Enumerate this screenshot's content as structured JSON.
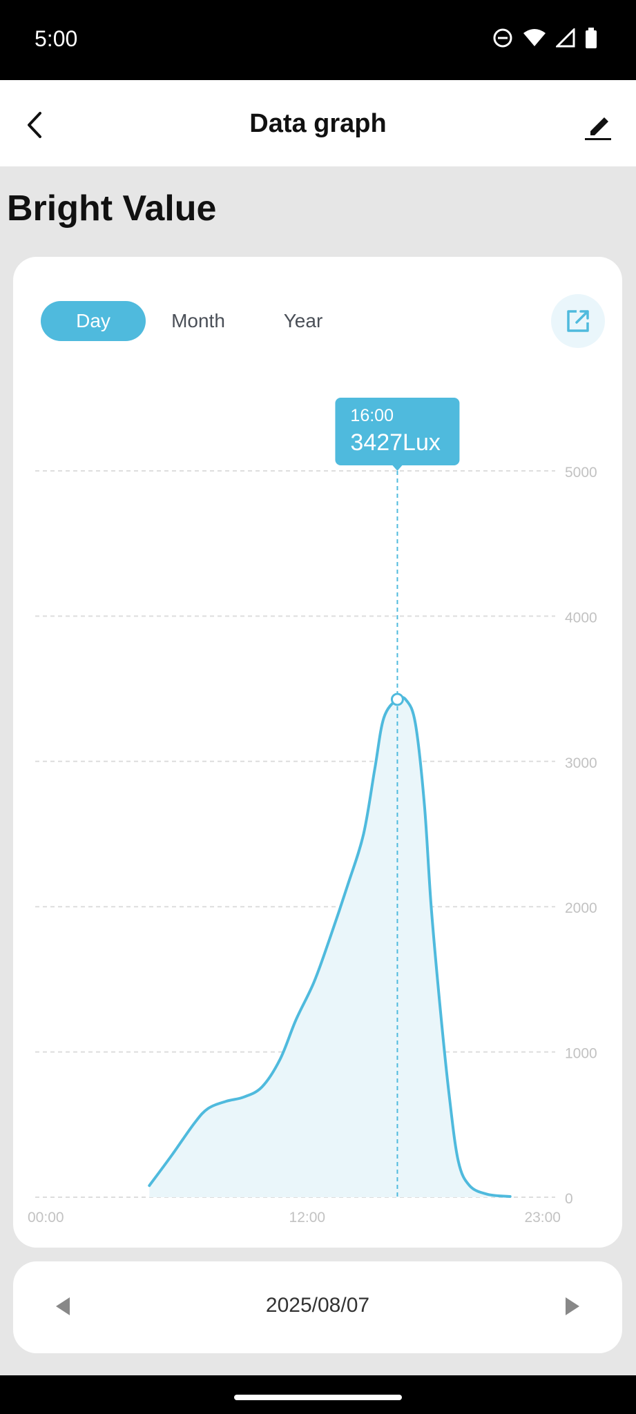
{
  "status": {
    "time": "5:00"
  },
  "header": {
    "title": "Data graph"
  },
  "page": {
    "heading": "Bright Value"
  },
  "tabs": [
    {
      "label": "Day",
      "active": true
    },
    {
      "label": "Month",
      "active": false
    },
    {
      "label": "Year",
      "active": false
    }
  ],
  "tooltip": {
    "time": "16:00",
    "value": "3427Lux"
  },
  "footer": {
    "date": "2025/08/07"
  },
  "colors": {
    "accent": "#4fbadd",
    "fill": "#eaf6fa"
  },
  "chart_data": {
    "type": "area",
    "x_ticks": [
      "00:00",
      "12:00",
      "23:00"
    ],
    "y_ticks": [
      0,
      1000,
      2000,
      3000,
      4000,
      5000
    ],
    "ylim": [
      0,
      5000
    ],
    "xlim": [
      0,
      23
    ],
    "grid": true,
    "unit": "Lux",
    "highlight": {
      "x": 16,
      "y": 3427
    },
    "points": [
      {
        "x": 5.0,
        "y": 80
      },
      {
        "x": 6.0,
        "y": 290
      },
      {
        "x": 7.0,
        "y": 510
      },
      {
        "x": 7.6,
        "y": 610
      },
      {
        "x": 8.4,
        "y": 660
      },
      {
        "x": 9.2,
        "y": 690
      },
      {
        "x": 10.0,
        "y": 760
      },
      {
        "x": 10.8,
        "y": 950
      },
      {
        "x": 11.5,
        "y": 1220
      },
      {
        "x": 12.3,
        "y": 1480
      },
      {
        "x": 13.0,
        "y": 1780
      },
      {
        "x": 13.8,
        "y": 2150
      },
      {
        "x": 14.5,
        "y": 2500
      },
      {
        "x": 15.0,
        "y": 2950
      },
      {
        "x": 15.4,
        "y": 3300
      },
      {
        "x": 16.0,
        "y": 3427
      },
      {
        "x": 16.4,
        "y": 3420
      },
      {
        "x": 16.8,
        "y": 3260
      },
      {
        "x": 17.2,
        "y": 2700
      },
      {
        "x": 17.5,
        "y": 2000
      },
      {
        "x": 17.9,
        "y": 1300
      },
      {
        "x": 18.3,
        "y": 700
      },
      {
        "x": 18.7,
        "y": 250
      },
      {
        "x": 19.2,
        "y": 80
      },
      {
        "x": 20.0,
        "y": 20
      },
      {
        "x": 21.0,
        "y": 5
      }
    ]
  }
}
